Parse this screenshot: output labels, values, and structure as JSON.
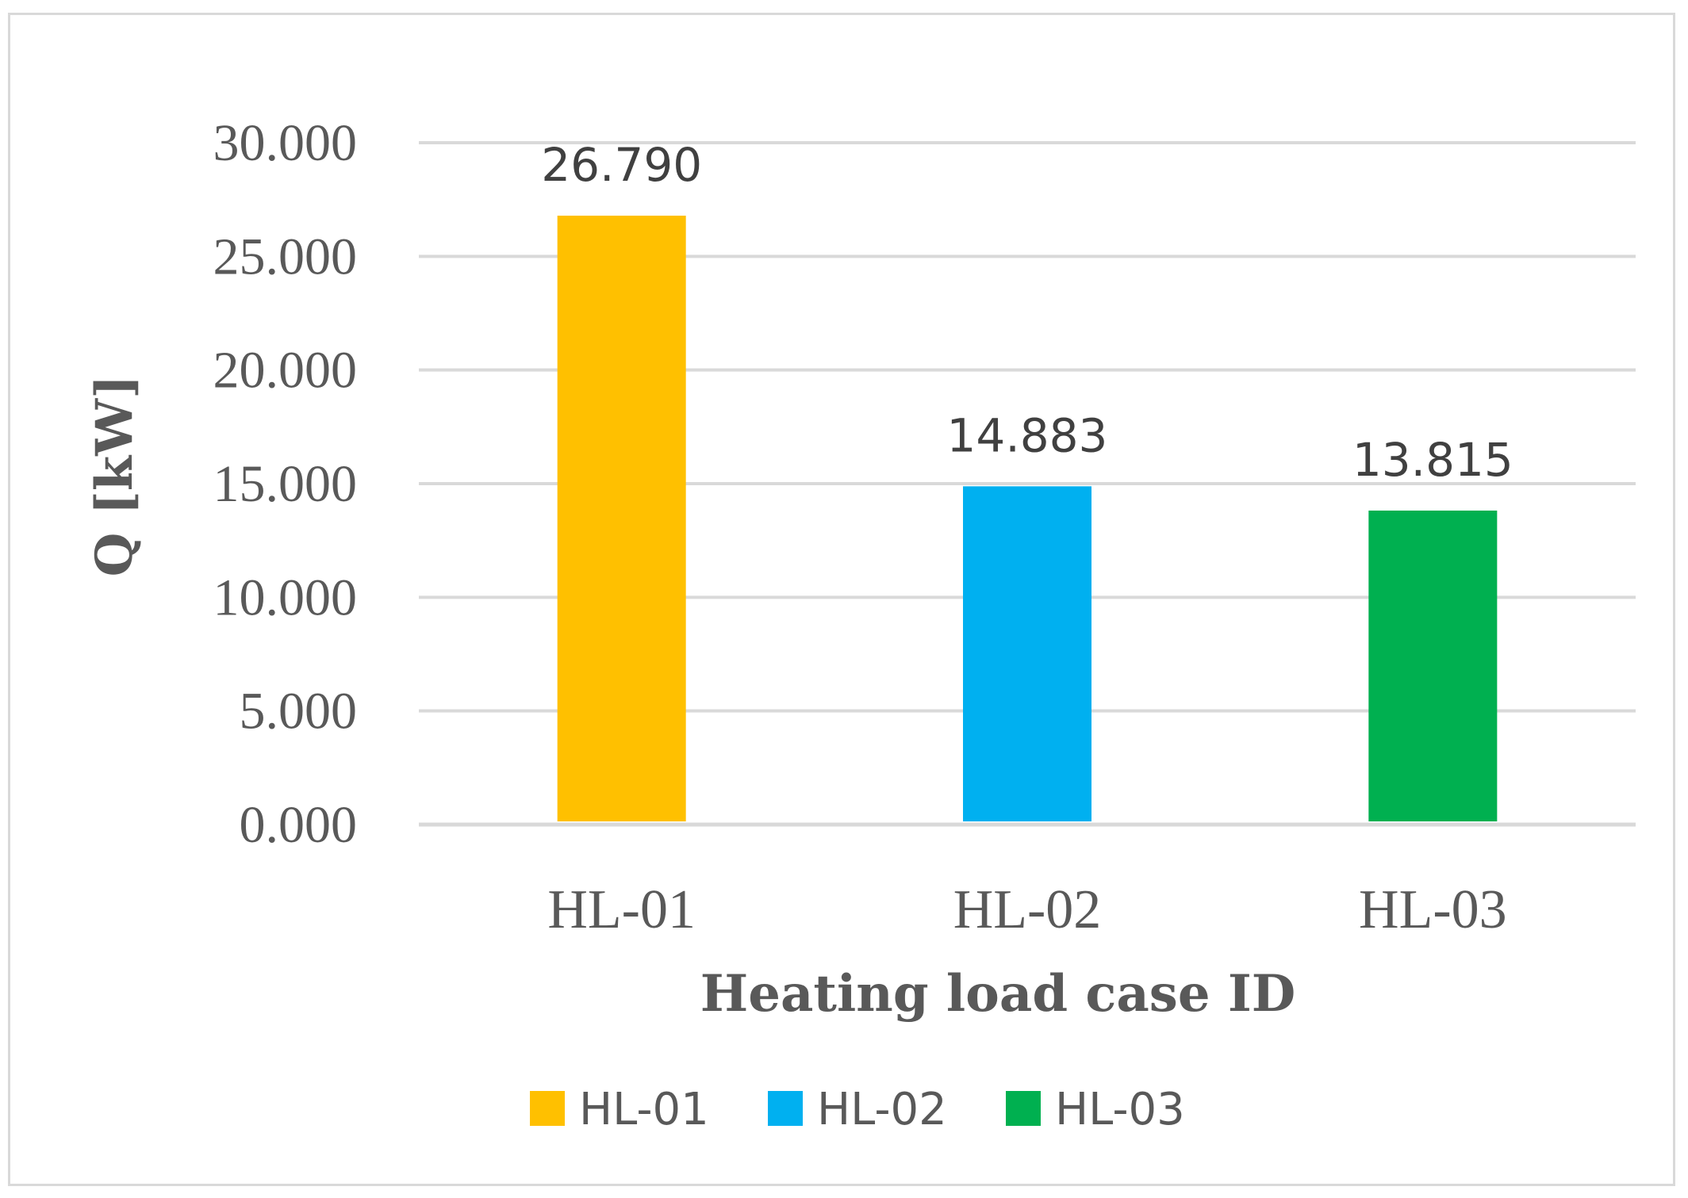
{
  "chart_data": {
    "type": "bar",
    "categories": [
      "HL-01",
      "HL-02",
      "HL-03"
    ],
    "values": [
      26.79,
      14.883,
      13.815
    ],
    "data_labels": [
      "26.790",
      "14.883",
      "13.815"
    ],
    "colors": [
      "#FFC000",
      "#00B0F0",
      "#00B050"
    ],
    "title": "",
    "xlabel": "Heating load case ID",
    "ylabel": "Q [kW]",
    "ylim": [
      0,
      30
    ],
    "yticks": [
      0,
      5,
      10,
      15,
      20,
      25,
      30
    ],
    "ytick_labels": [
      "0.000",
      "5.000",
      "10.000",
      "15.000",
      "20.000",
      "25.000",
      "30.000"
    ],
    "grid": true,
    "gridline_color": "#d9d9d9",
    "legend": {
      "placement": "bottom",
      "entries": [
        "HL-01",
        "HL-02",
        "HL-03"
      ]
    }
  }
}
